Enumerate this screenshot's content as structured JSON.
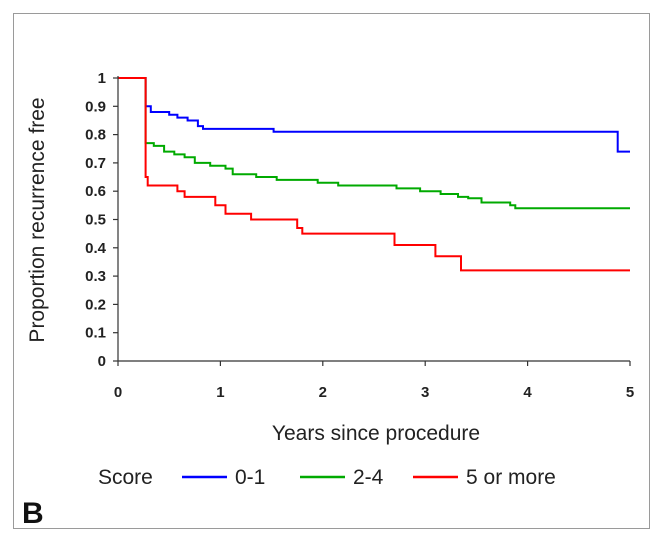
{
  "panel_label": "B",
  "chart_data": {
    "type": "line",
    "step": true,
    "title": "",
    "xlabel": "Years since procedure",
    "ylabel": "Proportion recurrence free",
    "xlim": [
      0,
      5
    ],
    "ylim": [
      0,
      1
    ],
    "xticks": [
      0,
      1,
      2,
      3,
      4,
      5
    ],
    "xtick_labels": [
      "0",
      "1",
      "2",
      "3",
      "4",
      "5"
    ],
    "yticks": [
      0,
      0.1,
      0.2,
      0.3,
      0.4,
      0.5,
      0.6,
      0.7,
      0.8,
      0.9,
      1
    ],
    "ytick_labels": [
      "0",
      "0.1",
      "0.2",
      "0.3",
      "0.4",
      "0.5",
      "0.6",
      "0.7",
      "0.8",
      "0.9",
      "1"
    ],
    "grid": false,
    "legend": {
      "title": "Score",
      "placement": "bottom"
    },
    "series": [
      {
        "name": "0-1",
        "color": "#0000ff",
        "x": [
          0,
          0.27,
          0.27,
          0.32,
          0.32,
          0.5,
          0.5,
          0.58,
          0.58,
          0.68,
          0.68,
          0.78,
          0.78,
          0.83,
          0.83,
          1.52,
          1.52,
          4.88,
          4.88,
          5.0
        ],
        "y": [
          1,
          1,
          0.9,
          0.9,
          0.88,
          0.88,
          0.87,
          0.87,
          0.86,
          0.86,
          0.85,
          0.85,
          0.83,
          0.83,
          0.82,
          0.82,
          0.81,
          0.81,
          0.74,
          0.74
        ]
      },
      {
        "name": "2-4",
        "color": "#00aa00",
        "x": [
          0,
          0.27,
          0.27,
          0.35,
          0.35,
          0.45,
          0.45,
          0.55,
          0.55,
          0.65,
          0.65,
          0.75,
          0.75,
          0.9,
          0.9,
          1.05,
          1.05,
          1.12,
          1.12,
          1.35,
          1.35,
          1.55,
          1.55,
          1.95,
          1.95,
          2.15,
          2.15,
          2.72,
          2.72,
          2.95,
          2.95,
          3.15,
          3.15,
          3.32,
          3.32,
          3.42,
          3.42,
          3.55,
          3.55,
          3.83,
          3.83,
          3.88,
          3.88,
          5.0
        ],
        "y": [
          1,
          1,
          0.77,
          0.77,
          0.76,
          0.76,
          0.74,
          0.74,
          0.73,
          0.73,
          0.72,
          0.72,
          0.7,
          0.7,
          0.69,
          0.69,
          0.68,
          0.68,
          0.66,
          0.66,
          0.65,
          0.65,
          0.64,
          0.64,
          0.63,
          0.63,
          0.62,
          0.62,
          0.61,
          0.61,
          0.6,
          0.6,
          0.59,
          0.59,
          0.58,
          0.58,
          0.575,
          0.575,
          0.56,
          0.56,
          0.55,
          0.55,
          0.54,
          0.54
        ]
      },
      {
        "name": "5 or more",
        "color": "#ff0000",
        "x": [
          0,
          0.27,
          0.27,
          0.29,
          0.29,
          0.58,
          0.58,
          0.65,
          0.65,
          0.95,
          0.95,
          1.05,
          1.05,
          1.3,
          1.3,
          1.75,
          1.75,
          1.8,
          1.8,
          2.7,
          2.7,
          3.1,
          3.1,
          3.35,
          3.35,
          5.0
        ],
        "y": [
          1,
          1,
          0.65,
          0.65,
          0.62,
          0.62,
          0.6,
          0.6,
          0.58,
          0.58,
          0.55,
          0.55,
          0.52,
          0.52,
          0.5,
          0.5,
          0.47,
          0.47,
          0.45,
          0.45,
          0.41,
          0.41,
          0.37,
          0.37,
          0.32,
          0.32
        ]
      }
    ]
  }
}
